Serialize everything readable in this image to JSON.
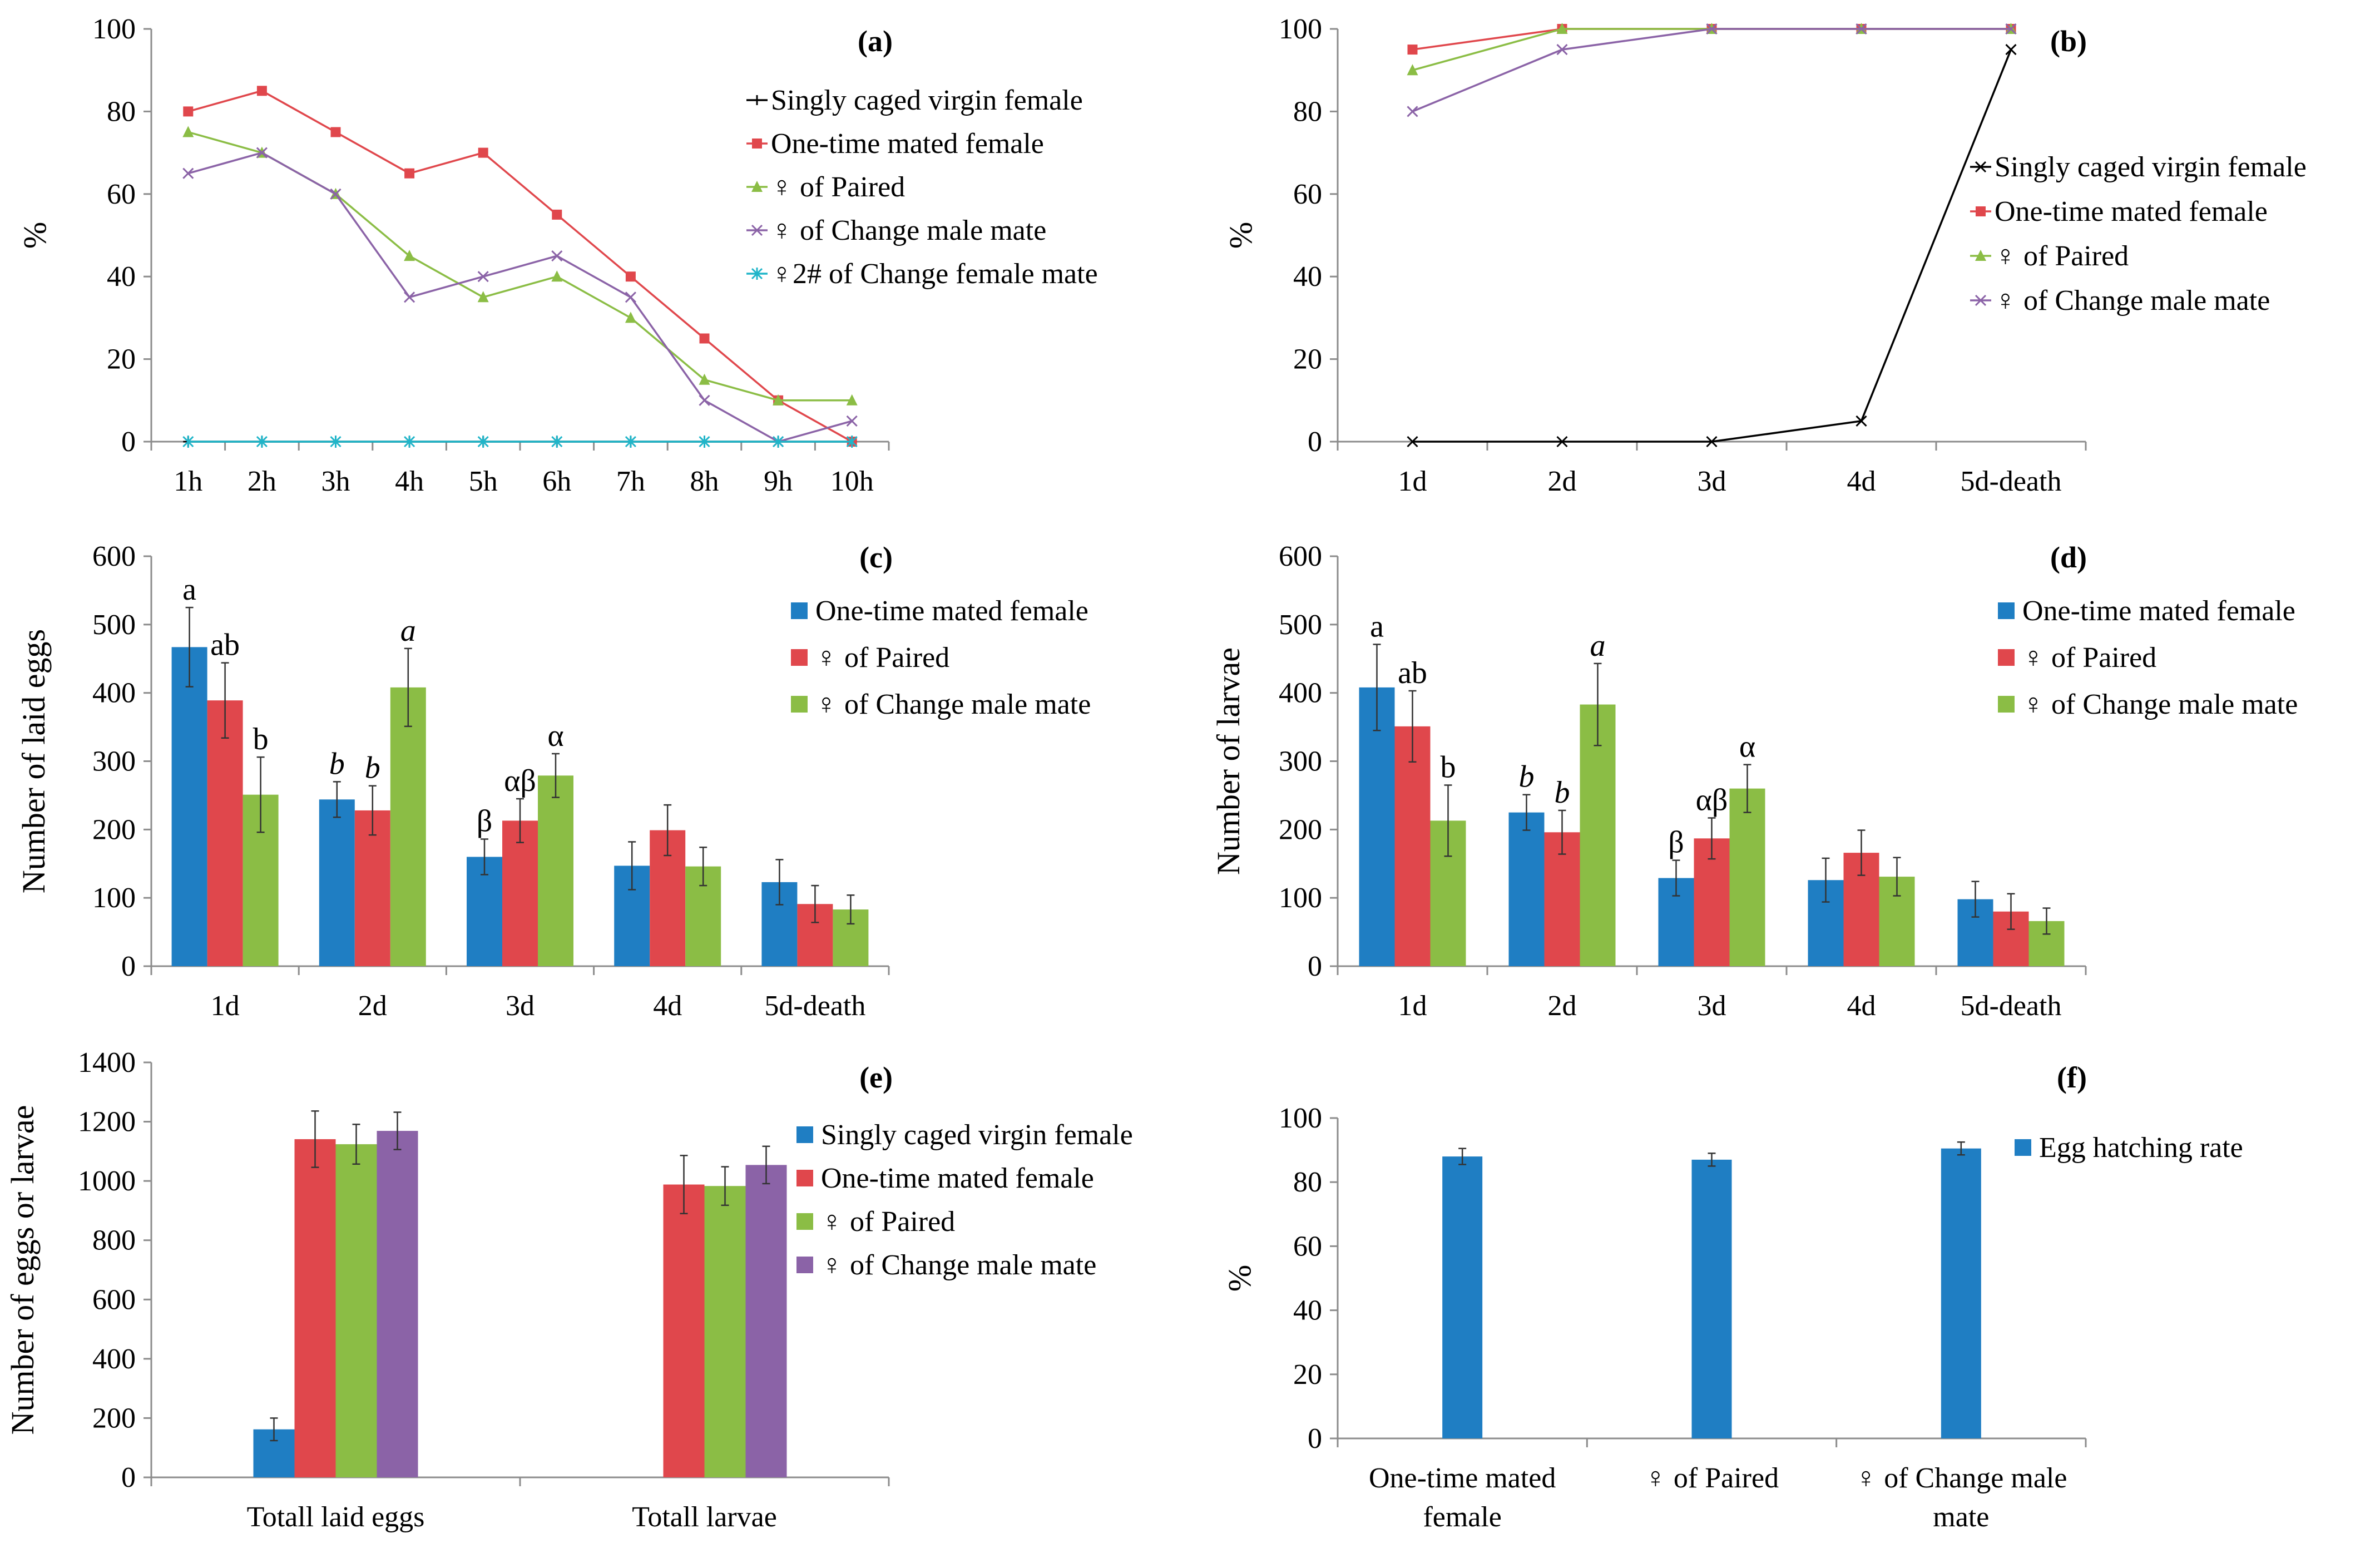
{
  "colors": {
    "blue": "#1f7ec3",
    "red": "#e0474c",
    "green": "#8bbd45",
    "purple": "#8b63a7",
    "cyan": "#20b5c9",
    "black": "#000000",
    "axis": "#8c8c8c"
  },
  "chart_data": [
    {
      "id": "a",
      "panel_label": "(a)",
      "type": "line",
      "ylabel": "%",
      "ylim": [
        0,
        100
      ],
      "yticks": [
        0,
        20,
        40,
        60,
        80,
        100
      ],
      "categories": [
        "1h",
        "2h",
        "3h",
        "4h",
        "5h",
        "6h",
        "7h",
        "8h",
        "9h",
        "10h"
      ],
      "legend_position": "top-right",
      "series": [
        {
          "name": "Singly caged virgin female",
          "color": "#000000",
          "marker": "cross",
          "values": [
            0,
            0,
            0,
            0,
            0,
            0,
            0,
            0,
            0,
            0
          ]
        },
        {
          "name": "One-time mated female",
          "color": "#e0474c",
          "marker": "square",
          "values": [
            80,
            85,
            75,
            65,
            70,
            55,
            40,
            25,
            10,
            0
          ]
        },
        {
          "name": "♀ of Paired",
          "color": "#8bbd45",
          "marker": "triangle",
          "values": [
            75,
            70,
            60,
            45,
            35,
            40,
            30,
            15,
            10,
            10
          ]
        },
        {
          "name": "♀ of Change male mate",
          "color": "#8b63a7",
          "marker": "x",
          "values": [
            65,
            70,
            60,
            35,
            40,
            45,
            35,
            10,
            0,
            5
          ]
        },
        {
          "name": "♀2# of Change female mate",
          "color": "#20b5c9",
          "marker": "star",
          "values": [
            0,
            0,
            0,
            0,
            0,
            0,
            0,
            0,
            0,
            0
          ]
        }
      ]
    },
    {
      "id": "b",
      "panel_label": "(b)",
      "type": "line",
      "ylabel": "%",
      "ylim": [
        0,
        100
      ],
      "yticks": [
        0,
        20,
        40,
        60,
        80,
        100
      ],
      "categories": [
        "1d",
        "2d",
        "3d",
        "4d",
        "5d-death"
      ],
      "legend_position": "middle-right",
      "series": [
        {
          "name": "Singly caged virgin female",
          "color": "#000000",
          "marker": "x",
          "values": [
            0,
            0,
            0,
            5,
            95
          ]
        },
        {
          "name": "One-time mated female",
          "color": "#e0474c",
          "marker": "square",
          "values": [
            95,
            100,
            100,
            100,
            100
          ]
        },
        {
          "name": "♀ of Paired",
          "color": "#8bbd45",
          "marker": "triangle",
          "values": [
            90,
            100,
            100,
            100,
            100
          ]
        },
        {
          "name": "♀ of Change male mate",
          "color": "#8b63a7",
          "marker": "x",
          "values": [
            80,
            95,
            100,
            100,
            100
          ]
        }
      ]
    },
    {
      "id": "c",
      "panel_label": "(c)",
      "type": "bar",
      "ylabel": "Number of laid eggs",
      "ylim": [
        0,
        600
      ],
      "yticks": [
        0,
        100,
        200,
        300,
        400,
        500,
        600
      ],
      "categories": [
        "1d",
        "2d",
        "3d",
        "4d",
        "5d-death"
      ],
      "legend_position": "top-right",
      "series": [
        {
          "name": "One-time mated female",
          "color": "#1f7ec3",
          "values": [
            467,
            244,
            160,
            147,
            123
          ],
          "errors": [
            58,
            26,
            26,
            35,
            33
          ]
        },
        {
          "name": "♀ of Paired",
          "color": "#e0474c",
          "values": [
            389,
            228,
            213,
            199,
            91
          ],
          "errors": [
            55,
            36,
            32,
            37,
            27
          ]
        },
        {
          "name": "♀ of Change male mate",
          "color": "#8bbd45",
          "values": [
            251,
            408,
            279,
            146,
            83
          ],
          "errors": [
            55,
            57,
            32,
            28,
            21
          ]
        }
      ],
      "annotations": [
        {
          "category": 0,
          "series": 0,
          "text": "a",
          "italic": false
        },
        {
          "category": 0,
          "series": 1,
          "text": "ab",
          "italic": false
        },
        {
          "category": 0,
          "series": 2,
          "text": "b",
          "italic": false
        },
        {
          "category": 1,
          "series": 0,
          "text": "b",
          "italic": true
        },
        {
          "category": 1,
          "series": 1,
          "text": "b",
          "italic": true
        },
        {
          "category": 1,
          "series": 2,
          "text": "a",
          "italic": true
        },
        {
          "category": 2,
          "series": 0,
          "text": "β",
          "italic": false
        },
        {
          "category": 2,
          "series": 1,
          "text": "αβ",
          "italic": false
        },
        {
          "category": 2,
          "series": 2,
          "text": "α",
          "italic": false
        }
      ]
    },
    {
      "id": "d",
      "panel_label": "(d)",
      "type": "bar",
      "ylabel": "Number of larvae",
      "ylim": [
        0,
        600
      ],
      "yticks": [
        0,
        100,
        200,
        300,
        400,
        500,
        600
      ],
      "categories": [
        "1d",
        "2d",
        "3d",
        "4d",
        "5d-death"
      ],
      "legend_position": "top-right",
      "series": [
        {
          "name": "One-time mated female",
          "color": "#1f7ec3",
          "values": [
            408,
            225,
            129,
            126,
            98
          ],
          "errors": [
            63,
            26,
            26,
            32,
            26
          ]
        },
        {
          "name": "♀ of Paired",
          "color": "#e0474c",
          "values": [
            351,
            196,
            187,
            166,
            80
          ],
          "errors": [
            52,
            32,
            30,
            33,
            26
          ]
        },
        {
          "name": "♀ of Change male mate",
          "color": "#8bbd45",
          "values": [
            213,
            383,
            260,
            131,
            66
          ],
          "errors": [
            52,
            60,
            35,
            28,
            19
          ]
        }
      ],
      "annotations": [
        {
          "category": 0,
          "series": 0,
          "text": "a",
          "italic": false
        },
        {
          "category": 0,
          "series": 1,
          "text": "ab",
          "italic": false
        },
        {
          "category": 0,
          "series": 2,
          "text": "b",
          "italic": false
        },
        {
          "category": 1,
          "series": 0,
          "text": "b",
          "italic": true
        },
        {
          "category": 1,
          "series": 1,
          "text": "b",
          "italic": true
        },
        {
          "category": 1,
          "series": 2,
          "text": "a",
          "italic": true
        },
        {
          "category": 2,
          "series": 0,
          "text": "β",
          "italic": false
        },
        {
          "category": 2,
          "series": 1,
          "text": "αβ",
          "italic": false
        },
        {
          "category": 2,
          "series": 2,
          "text": "α",
          "italic": false
        }
      ]
    },
    {
      "id": "e",
      "panel_label": "(e)",
      "type": "bar",
      "ylabel": "Number of eggs or larvae",
      "ylim": [
        0,
        1400
      ],
      "yticks": [
        0,
        200,
        400,
        600,
        800,
        1000,
        1200,
        1400
      ],
      "categories": [
        "Totall laid eggs",
        "Totall larvae"
      ],
      "legend_position": "top-right",
      "series": [
        {
          "name": "Singly caged virgin female",
          "color": "#1f7ec3",
          "values": [
            162,
            0
          ],
          "errors": [
            38,
            0
          ]
        },
        {
          "name": "One-time mated female",
          "color": "#e0474c",
          "values": [
            1141,
            988
          ],
          "errors": [
            95,
            98
          ]
        },
        {
          "name": "♀ of Paired",
          "color": "#8bbd45",
          "values": [
            1124,
            983
          ],
          "errors": [
            67,
            65
          ]
        },
        {
          "name": "♀ of Change male mate",
          "color": "#8b63a7",
          "values": [
            1169,
            1054
          ],
          "errors": [
            63,
            63
          ]
        }
      ]
    },
    {
      "id": "f",
      "panel_label": "(f)",
      "type": "bar",
      "ylabel": "%",
      "ylim": [
        0,
        100
      ],
      "yticks": [
        0,
        20,
        40,
        60,
        80,
        100
      ],
      "categories": [
        "One-time mated female",
        "♀ of Paired",
        "♀ of Change male mate"
      ],
      "category_lines": [
        [
          "One-time mated",
          "female"
        ],
        [
          "♀ of Paired"
        ],
        [
          "♀ of Change male",
          "mate"
        ]
      ],
      "legend_position": "top-right",
      "series": [
        {
          "name": "Egg hatching rate",
          "color": "#1f7ec3",
          "values": [
            88,
            87,
            90.5
          ],
          "errors": [
            2.5,
            2,
            2
          ]
        }
      ]
    }
  ]
}
